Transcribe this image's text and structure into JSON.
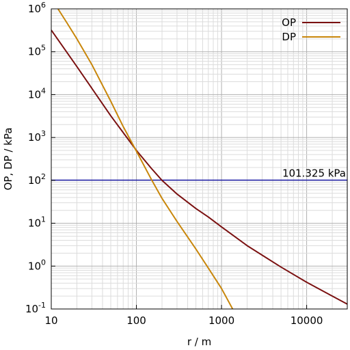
{
  "chart_data": {
    "type": "line",
    "x_scale": "log",
    "y_scale": "log",
    "xlim": [
      10,
      30000
    ],
    "ylim": [
      0.1,
      1000000
    ],
    "xlabel": "r / m",
    "ylabel": "OP, DP / kPa",
    "x_ticks": [
      {
        "value": 10,
        "label": "10"
      },
      {
        "value": 100,
        "label": "100"
      },
      {
        "value": 1000,
        "label": "1000"
      },
      {
        "value": 10000,
        "label": "10000"
      }
    ],
    "y_ticks": [
      {
        "value": 0.1,
        "base": "10",
        "exp": "-1"
      },
      {
        "value": 1,
        "base": "10",
        "exp": "0"
      },
      {
        "value": 10,
        "base": "10",
        "exp": "1"
      },
      {
        "value": 100,
        "base": "10",
        "exp": "2"
      },
      {
        "value": 1000,
        "base": "10",
        "exp": "3"
      },
      {
        "value": 10000,
        "base": "10",
        "exp": "4"
      },
      {
        "value": 100000,
        "base": "10",
        "exp": "5"
      },
      {
        "value": 1000000,
        "base": "10",
        "exp": "6"
      }
    ],
    "grid": true,
    "minor_grid": true,
    "legend_position": "top-right",
    "series": [
      {
        "name": "OP",
        "color": "#7a1010",
        "points": [
          [
            10,
            320000
          ],
          [
            20,
            45000
          ],
          [
            30,
            14000
          ],
          [
            50,
            3200
          ],
          [
            70,
            1300
          ],
          [
            100,
            500
          ],
          [
            150,
            190
          ],
          [
            200,
            100
          ],
          [
            300,
            48
          ],
          [
            500,
            22
          ],
          [
            700,
            14
          ],
          [
            1000,
            8.2
          ],
          [
            2000,
            3
          ],
          [
            3000,
            1.8
          ],
          [
            5000,
            0.95
          ],
          [
            10000,
            0.42
          ],
          [
            20000,
            0.2
          ],
          [
            30000,
            0.13
          ]
        ]
      },
      {
        "name": "DP",
        "color": "#c8860a",
        "points": [
          [
            12,
            1000000
          ],
          [
            15,
            500000
          ],
          [
            20,
            200000
          ],
          [
            30,
            50000
          ],
          [
            50,
            7000
          ],
          [
            70,
            1800
          ],
          [
            100,
            480
          ],
          [
            150,
            105
          ],
          [
            200,
            38
          ],
          [
            300,
            11
          ],
          [
            500,
            2.5
          ],
          [
            700,
            0.9
          ],
          [
            1000,
            0.3
          ],
          [
            1350,
            0.1
          ]
        ]
      }
    ],
    "reference_line": {
      "value": 101.325,
      "label": "101.325 kPa",
      "color": "#1a1aa6"
    }
  }
}
